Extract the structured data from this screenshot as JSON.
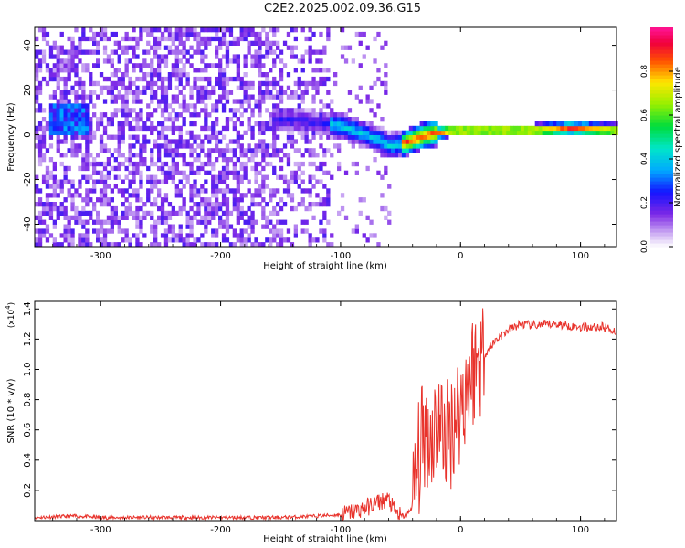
{
  "title": "C2E2.2025.002.09.36.G15",
  "chart_data": [
    {
      "type": "heatmap",
      "xlabel": "Height of straight line (km)",
      "ylabel": "Frequency (Hz)",
      "xlim": [
        -355,
        130
      ],
      "ylim": [
        -50,
        48
      ],
      "xticks": [
        -300,
        -200,
        -100,
        0,
        100
      ],
      "yticks": [
        -40,
        -20,
        0,
        20,
        40
      ],
      "colorbar": {
        "label": "Normalized spectral amplitude",
        "range": [
          0,
          1
        ],
        "ticks": [
          0.0,
          0.2,
          0.4,
          0.6,
          0.8
        ],
        "tick_labels": [
          "0.0",
          "0.2",
          "0.4",
          "0.6",
          "0.8"
        ]
      },
      "ridge_frequency": [
        [
          -150,
          6
        ],
        [
          -130,
          5
        ],
        [
          -110,
          4
        ],
        [
          -95,
          2
        ],
        [
          -80,
          -1
        ],
        [
          -70,
          -3
        ],
        [
          -60,
          -6
        ],
        [
          -50,
          -5
        ],
        [
          -40,
          -3
        ],
        [
          -30,
          -1
        ],
        [
          -20,
          0
        ],
        [
          -10,
          1
        ],
        [
          0,
          1
        ],
        [
          20,
          1
        ],
        [
          60,
          1
        ],
        [
          90,
          2
        ],
        [
          130,
          1
        ]
      ]
    },
    {
      "type": "line",
      "xlabel": "Height of straight line (km)",
      "ylabel": "SNR (10 * v/v)",
      "multiplier_label": "(x10",
      "multiplier_exp": "4",
      "xlim": [
        -355,
        130
      ],
      "ylim": [
        0,
        1.45
      ],
      "xticks": [
        -300,
        -200,
        -100,
        0,
        100
      ],
      "yticks": [
        0.2,
        0.4,
        0.6,
        0.8,
        1.0,
        1.2,
        1.4
      ],
      "ytick_labels": [
        "0.2",
        "0.4",
        "0.6",
        "0.8",
        "1.0",
        "1.2",
        "1.4"
      ],
      "series": [
        {
          "color": "#e8332c",
          "x": [
            -355,
            -320,
            -300,
            -250,
            -200,
            -150,
            -120,
            -100,
            -80,
            -70,
            -60,
            -55,
            -50,
            -45,
            -40,
            -35,
            -30,
            -25,
            -20,
            -15,
            -10,
            -5,
            0,
            5,
            10,
            20,
            30,
            40,
            50,
            60,
            80,
            100,
            120,
            130
          ],
          "y": [
            0.02,
            0.03,
            0.02,
            0.02,
            0.02,
            0.02,
            0.03,
            0.04,
            0.08,
            0.12,
            0.14,
            0.06,
            0.03,
            0.03,
            0.1,
            0.4,
            0.6,
            0.55,
            0.65,
            0.6,
            0.55,
            0.7,
            0.75,
            0.9,
            1.0,
            1.1,
            1.2,
            1.26,
            1.3,
            1.29,
            1.3,
            1.28,
            1.28,
            1.25
          ]
        }
      ]
    }
  ]
}
